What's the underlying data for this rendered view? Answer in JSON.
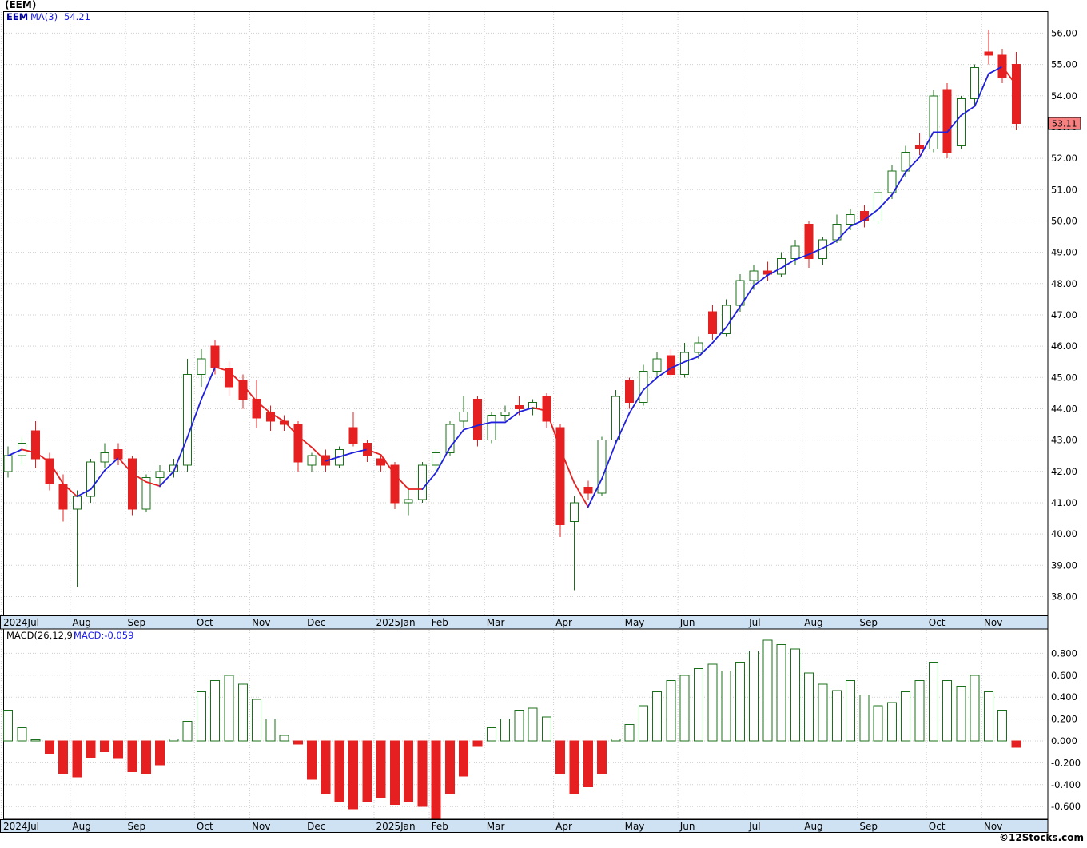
{
  "title": "(EEM)",
  "legend": {
    "symbol": "EEM",
    "ma_label": "MA(3)",
    "ma_value": "54.21"
  },
  "macd_header": {
    "label": "MACD(26,12,9)",
    "value_label": "MACD:-0.059"
  },
  "last_price_tag": "53.11",
  "watermark": "©12Stocks.com",
  "colors": {
    "up": "#1a701a",
    "down": "#e62020",
    "ma_up": "#2020dd",
    "ma_down": "#e62020",
    "grid": "#cfcfcf",
    "band": "#cfe2f3",
    "tag_bg": "#f88080",
    "frame": "#000000"
  },
  "chart_data": [
    {
      "type": "candlestick",
      "symbol": "EEM",
      "timeframe": "weekly",
      "overlay": "MA(3)",
      "overlay_last": 54.21,
      "last_close": 53.11,
      "y_axis": {
        "min": 38,
        "max": 56,
        "step": 1,
        "ticks": [
          "56.00",
          "55.00",
          "54.00",
          "53.00",
          "52.00",
          "51.00",
          "50.00",
          "49.00",
          "48.00",
          "47.00",
          "46.00",
          "45.00",
          "44.00",
          "43.00",
          "42.00",
          "41.00",
          "40.00",
          "39.00",
          "38.00"
        ]
      },
      "x_months": [
        {
          "label": "2024Jul",
          "i": 0
        },
        {
          "label": "Aug",
          "i": 5
        },
        {
          "label": "Sep",
          "i": 9
        },
        {
          "label": "Oct",
          "i": 14
        },
        {
          "label": "Nov",
          "i": 18
        },
        {
          "label": "Dec",
          "i": 22
        },
        {
          "label": "2025Jan",
          "i": 27
        },
        {
          "label": "Feb",
          "i": 31
        },
        {
          "label": "Mar",
          "i": 35
        },
        {
          "label": "Apr",
          "i": 40
        },
        {
          "label": "May",
          "i": 45
        },
        {
          "label": "Jun",
          "i": 49
        },
        {
          "label": "Jul",
          "i": 54
        },
        {
          "label": "Aug",
          "i": 58
        },
        {
          "label": "Sep",
          "i": 62
        },
        {
          "label": "Oct",
          "i": 67
        },
        {
          "label": "Nov",
          "i": 71
        }
      ],
      "ohlc": [
        [
          42.0,
          42.8,
          41.8,
          42.5
        ],
        [
          42.5,
          43.1,
          42.2,
          42.9
        ],
        [
          43.3,
          43.6,
          42.1,
          42.4
        ],
        [
          42.4,
          42.6,
          41.4,
          41.6
        ],
        [
          41.6,
          41.9,
          40.4,
          40.8
        ],
        [
          40.8,
          41.4,
          38.3,
          41.2
        ],
        [
          41.2,
          42.4,
          41.0,
          42.3
        ],
        [
          42.3,
          42.9,
          42.1,
          42.6
        ],
        [
          42.7,
          42.9,
          42.2,
          42.4
        ],
        [
          42.4,
          42.5,
          40.6,
          40.8
        ],
        [
          40.8,
          41.9,
          40.7,
          41.8
        ],
        [
          41.8,
          42.2,
          41.5,
          42.0
        ],
        [
          42.0,
          42.4,
          41.8,
          42.2
        ],
        [
          42.2,
          45.6,
          42.0,
          45.1
        ],
        [
          45.1,
          45.9,
          44.7,
          45.6
        ],
        [
          46.0,
          46.2,
          45.1,
          45.3
        ],
        [
          45.3,
          45.5,
          44.4,
          44.7
        ],
        [
          44.9,
          45.1,
          44.0,
          44.3
        ],
        [
          44.3,
          44.9,
          43.4,
          43.7
        ],
        [
          43.9,
          44.1,
          43.3,
          43.6
        ],
        [
          43.6,
          43.8,
          43.3,
          43.5
        ],
        [
          43.5,
          43.6,
          42.0,
          42.3
        ],
        [
          42.2,
          42.6,
          42.0,
          42.5
        ],
        [
          42.5,
          42.7,
          42.0,
          42.2
        ],
        [
          42.2,
          42.8,
          42.1,
          42.7
        ],
        [
          43.4,
          43.9,
          42.8,
          42.9
        ],
        [
          42.9,
          43.0,
          42.3,
          42.5
        ],
        [
          42.4,
          42.5,
          42.0,
          42.2
        ],
        [
          42.2,
          42.3,
          40.8,
          41.0
        ],
        [
          41.0,
          41.5,
          40.6,
          41.1
        ],
        [
          41.1,
          42.3,
          41.0,
          42.2
        ],
        [
          42.2,
          42.7,
          42.0,
          42.6
        ],
        [
          42.6,
          43.6,
          42.5,
          43.5
        ],
        [
          43.6,
          44.4,
          43.4,
          43.9
        ],
        [
          44.3,
          44.4,
          42.8,
          43.0
        ],
        [
          43.0,
          43.9,
          42.9,
          43.8
        ],
        [
          43.8,
          44.1,
          43.6,
          43.9
        ],
        [
          44.1,
          44.4,
          43.8,
          44.0
        ],
        [
          44.0,
          44.3,
          43.8,
          44.2
        ],
        [
          44.4,
          44.5,
          43.4,
          43.6
        ],
        [
          43.4,
          43.5,
          39.9,
          40.3
        ],
        [
          40.4,
          41.2,
          38.2,
          41.0
        ],
        [
          41.5,
          41.7,
          41.1,
          41.3
        ],
        [
          41.3,
          43.1,
          41.2,
          43.0
        ],
        [
          43.0,
          44.6,
          42.9,
          44.4
        ],
        [
          44.9,
          45.0,
          44.0,
          44.2
        ],
        [
          44.2,
          45.4,
          44.1,
          45.2
        ],
        [
          45.2,
          45.8,
          45.0,
          45.6
        ],
        [
          45.7,
          45.9,
          45.0,
          45.1
        ],
        [
          45.1,
          46.1,
          45.0,
          45.8
        ],
        [
          45.8,
          46.3,
          45.6,
          46.1
        ],
        [
          47.1,
          47.3,
          46.2,
          46.4
        ],
        [
          46.4,
          47.5,
          46.3,
          47.3
        ],
        [
          47.3,
          48.3,
          47.1,
          48.1
        ],
        [
          48.1,
          48.6,
          47.8,
          48.4
        ],
        [
          48.4,
          48.7,
          48.1,
          48.3
        ],
        [
          48.3,
          49.0,
          48.2,
          48.8
        ],
        [
          48.8,
          49.4,
          48.6,
          49.2
        ],
        [
          49.9,
          50.0,
          48.5,
          48.8
        ],
        [
          48.8,
          49.5,
          48.6,
          49.4
        ],
        [
          49.4,
          50.2,
          49.3,
          49.9
        ],
        [
          49.9,
          50.4,
          49.7,
          50.2
        ],
        [
          50.3,
          50.5,
          49.8,
          50.0
        ],
        [
          50.0,
          51.0,
          49.9,
          50.9
        ],
        [
          50.9,
          51.8,
          50.7,
          51.6
        ],
        [
          51.6,
          52.4,
          51.4,
          52.2
        ],
        [
          52.4,
          52.8,
          52.1,
          52.3
        ],
        [
          52.3,
          54.2,
          52.2,
          54.0
        ],
        [
          54.2,
          54.4,
          52.0,
          52.2
        ],
        [
          52.4,
          54.0,
          52.3,
          53.9
        ],
        [
          53.9,
          55.0,
          53.7,
          54.9
        ],
        [
          55.4,
          56.1,
          55.0,
          55.3
        ],
        [
          55.3,
          55.5,
          54.4,
          54.6
        ],
        [
          55.0,
          55.4,
          52.9,
          53.11
        ]
      ]
    },
    {
      "type": "bar",
      "name": "MACD(26,12,9)",
      "last": -0.059,
      "y_axis": {
        "min": -0.6,
        "max": 0.8,
        "step": 0.2,
        "ticks": [
          "0.800",
          "0.600",
          "0.400",
          "0.200",
          "0.000",
          "-0.200",
          "-0.400",
          "-0.600"
        ]
      },
      "values": [
        0.28,
        0.12,
        0.01,
        -0.12,
        -0.3,
        -0.33,
        -0.15,
        -0.1,
        -0.16,
        -0.28,
        -0.3,
        -0.22,
        0.02,
        0.18,
        0.45,
        0.55,
        0.6,
        0.52,
        0.38,
        0.2,
        0.05,
        -0.03,
        -0.35,
        -0.48,
        -0.55,
        -0.62,
        -0.55,
        -0.52,
        -0.58,
        -0.55,
        -0.6,
        -0.72,
        -0.48,
        -0.32,
        -0.05,
        0.12,
        0.2,
        0.28,
        0.3,
        0.22,
        -0.3,
        -0.48,
        -0.42,
        -0.3,
        0.02,
        0.15,
        0.32,
        0.45,
        0.55,
        0.6,
        0.66,
        0.7,
        0.64,
        0.72,
        0.82,
        0.92,
        0.88,
        0.84,
        0.62,
        0.52,
        0.46,
        0.55,
        0.42,
        0.32,
        0.35,
        0.45,
        0.55,
        0.72,
        0.55,
        0.5,
        0.6,
        0.45,
        0.28,
        -0.059
      ]
    }
  ]
}
